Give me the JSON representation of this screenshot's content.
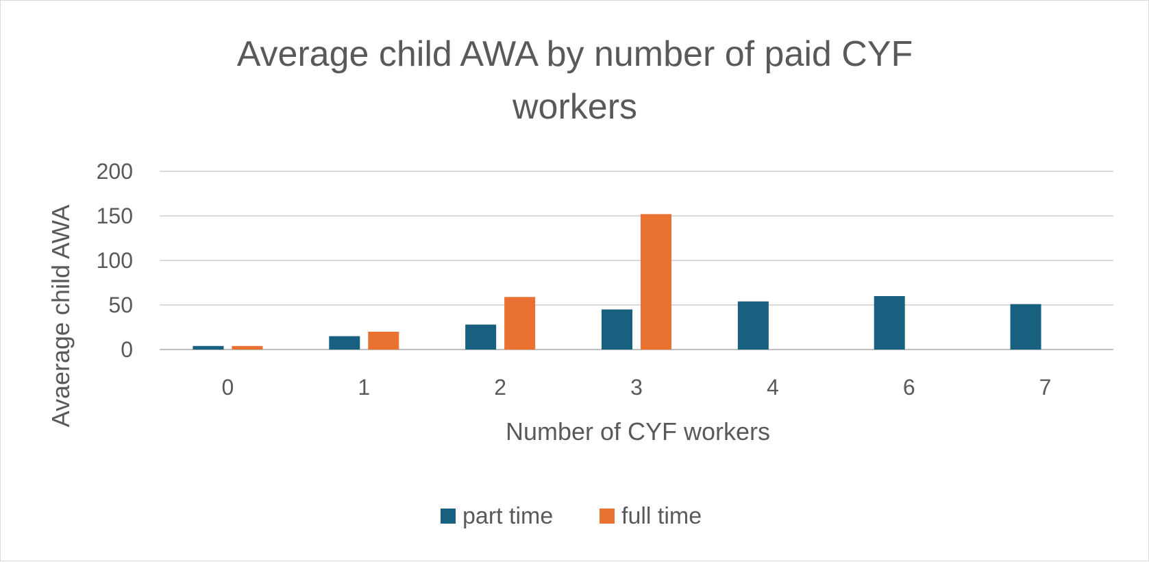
{
  "chart_data": {
    "type": "bar",
    "title_lines": [
      "Average child AWA by number of paid CYF",
      "workers"
    ],
    "xlabel": "Number of CYF workers",
    "ylabel": "Avaerage child AWA",
    "categories": [
      "0",
      "1",
      "2",
      "3",
      "4",
      "6",
      "7"
    ],
    "series": [
      {
        "name": "part time",
        "color": "#17607f",
        "values": [
          4,
          15,
          28,
          45,
          54,
          60,
          51
        ]
      },
      {
        "name": "full time",
        "color": "#e97132",
        "values": [
          4,
          20,
          59,
          152,
          null,
          null,
          null
        ]
      }
    ],
    "ylim": [
      0,
      200
    ],
    "yticks": [
      "0",
      "50",
      "100",
      "150",
      "200"
    ],
    "grid": true,
    "legend_position": "bottom"
  }
}
